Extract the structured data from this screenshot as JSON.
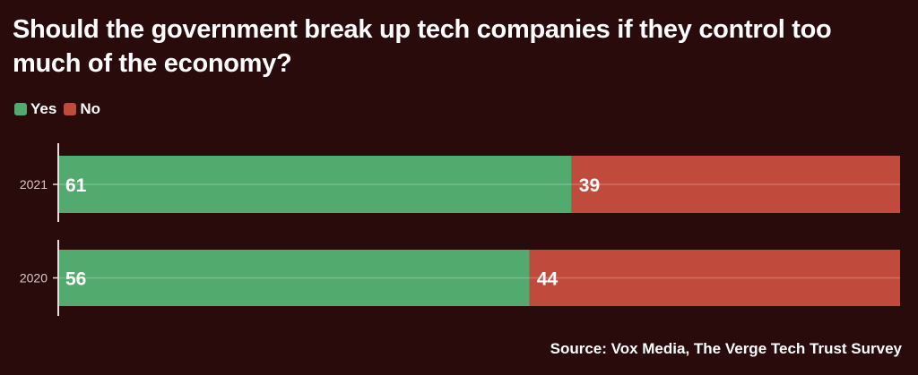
{
  "title": "Should the government break up tech companies if they control too much of the economy?",
  "legend": [
    {
      "label": "Yes",
      "color": "#52aa6e"
    },
    {
      "label": "No",
      "color": "#c04a3c"
    }
  ],
  "source": "Source: Vox Media, The Verge Tech Trust Survey",
  "chart_data": {
    "type": "bar",
    "orientation": "horizontal",
    "stacked": true,
    "categories": [
      "2021",
      "2020"
    ],
    "series": [
      {
        "name": "Yes",
        "values": [
          61,
          56
        ],
        "color": "#52aa6e"
      },
      {
        "name": "No",
        "values": [
          39,
          44
        ],
        "color": "#c04a3c"
      }
    ],
    "xlim": [
      0,
      100
    ],
    "legend_position": "top-left"
  }
}
